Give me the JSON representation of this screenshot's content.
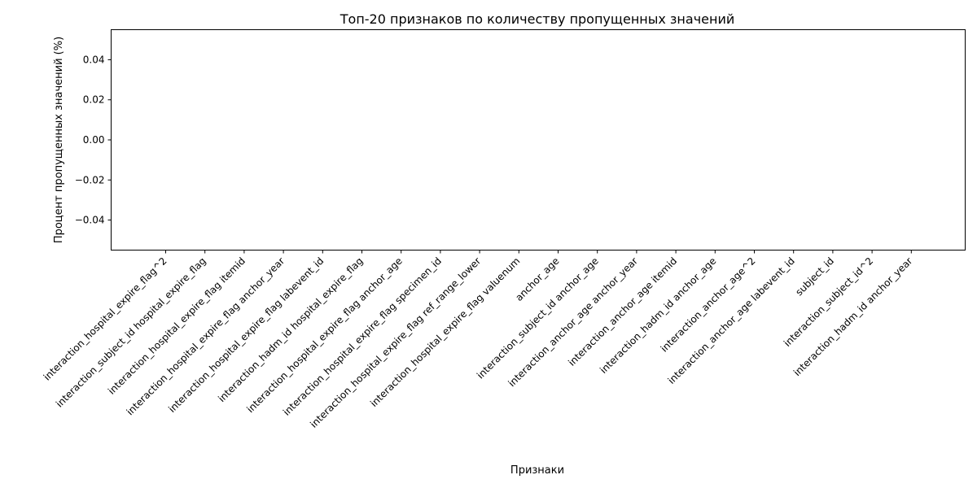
{
  "chart_data": {
    "type": "bar",
    "title": "Топ-20 признаков по количеству пропущенных значений",
    "xlabel": "Признаки",
    "ylabel": "Процент пропущенных значений (%)",
    "categories": [
      "interaction_hospital_expire_flag^2",
      "interaction_subject_id hospital_expire_flag",
      "interaction_hospital_expire_flag itemid",
      "interaction_hospital_expire_flag anchor_year",
      "interaction_hospital_expire_flag labevent_id",
      "interaction_hadm_id hospital_expire_flag",
      "interaction_hospital_expire_flag anchor_age",
      "interaction_hospital_expire_flag specimen_id",
      "interaction_hospital_expire_flag ref_range_lower",
      "interaction_hospital_expire_flag valuenum",
      "anchor_age",
      "interaction_subject_id anchor_age",
      "interaction_anchor_age anchor_year",
      "interaction_anchor_age itemid",
      "interaction_hadm_id anchor_age",
      "interaction_anchor_age^2",
      "interaction_anchor_age labevent_id",
      "subject_id",
      "interaction_subject_id^2",
      "interaction_hadm_id anchor_year"
    ],
    "values": [
      0,
      0,
      0,
      0,
      0,
      0,
      0,
      0,
      0,
      0,
      0,
      0,
      0,
      0,
      0,
      0,
      0,
      0,
      0,
      0
    ],
    "ylim": [
      -0.055,
      0.055
    ],
    "yticks": [
      0.04,
      0.02,
      0.0,
      -0.02,
      -0.04
    ],
    "ytick_labels": [
      "0.04",
      "0.02",
      "0.00",
      "−0.02",
      "−0.04"
    ],
    "grid": false,
    "legend": "none",
    "bar_color": "#1f77b4"
  }
}
